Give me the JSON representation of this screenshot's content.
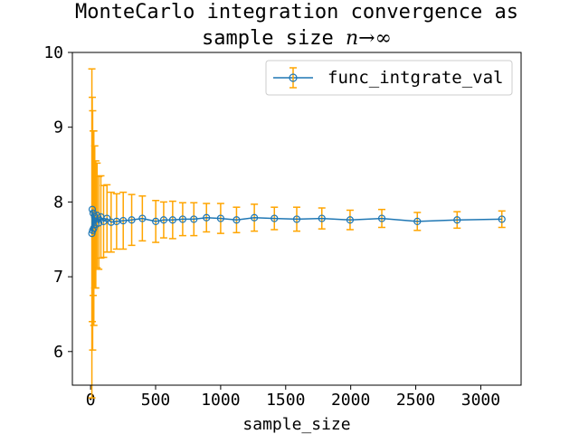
{
  "chart_data": {
    "type": "line",
    "title_line1": "MonteCarlo integration convergence as",
    "title_line2_prefix": "sample size ",
    "title_line2_math": "n→∞",
    "xlabel": "sample_size",
    "ylabel": "",
    "xlim": [
      -140,
      3310
    ],
    "ylim": [
      5.55,
      10.0
    ],
    "xticks": [
      0,
      500,
      1000,
      1500,
      2000,
      2500,
      3000
    ],
    "yticks": [
      6,
      7,
      8,
      9,
      10
    ],
    "legend": {
      "label": "func_intgrate_val",
      "placement": "upper right"
    },
    "colors": {
      "line": "#1f77b4",
      "errorbar": "#ffa500",
      "axes": "#000000"
    },
    "series": [
      {
        "name": "func_intgrate_val",
        "x": [
          10,
          13,
          16,
          20,
          25,
          32,
          40,
          50,
          63,
          79,
          100,
          126,
          158,
          200,
          251,
          316,
          398,
          501,
          631,
          794,
          1000,
          1259,
          1585,
          1995,
          2512,
          3162,
          562,
          708,
          891,
          1122,
          1413,
          1778,
          2239,
          2818
        ],
        "y": [
          7.58,
          7.9,
          7.62,
          7.85,
          7.65,
          7.8,
          7.7,
          7.82,
          7.72,
          7.8,
          7.74,
          7.78,
          7.73,
          7.74,
          7.75,
          7.76,
          7.78,
          7.74,
          7.76,
          7.77,
          7.78,
          7.79,
          7.77,
          7.76,
          7.74,
          7.77,
          7.76,
          7.77,
          7.79,
          7.76,
          7.78,
          7.78,
          7.78,
          7.76
        ],
        "yerr": [
          2.2,
          1.5,
          1.6,
          1.1,
          1.3,
          0.95,
          0.85,
          0.7,
          0.62,
          0.55,
          0.48,
          0.45,
          0.4,
          0.37,
          0.38,
          0.34,
          0.3,
          0.28,
          0.25,
          0.22,
          0.2,
          0.18,
          0.16,
          0.13,
          0.12,
          0.11,
          0.24,
          0.22,
          0.19,
          0.17,
          0.15,
          0.14,
          0.12,
          0.11
        ]
      }
    ]
  }
}
